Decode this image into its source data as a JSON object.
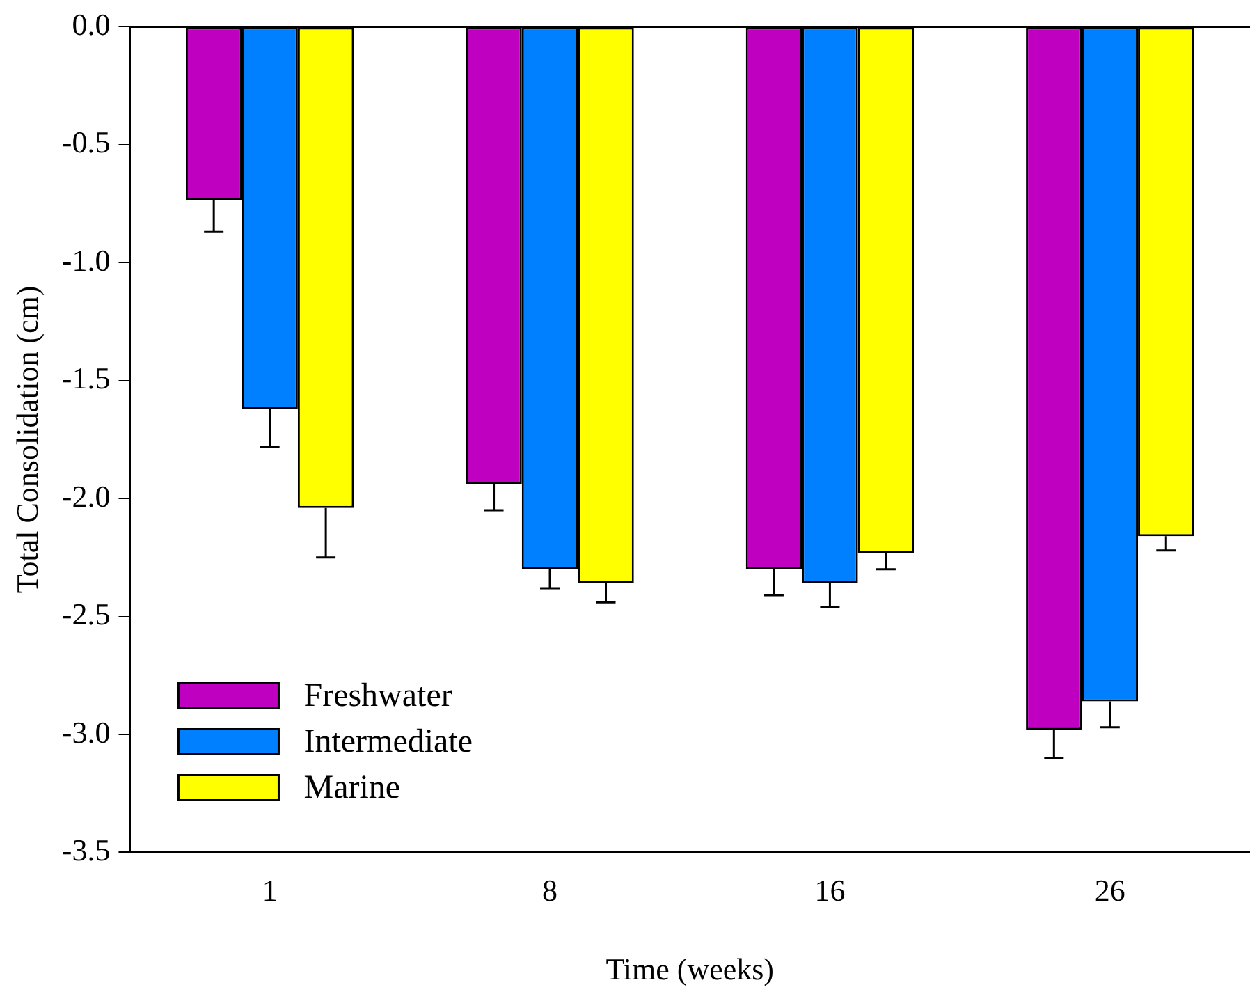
{
  "chart_data": {
    "type": "bar",
    "xlabel": "Time (weeks)",
    "ylabel": "Total Consolidation (cm)",
    "categories": [
      "1",
      "8",
      "16",
      "26"
    ],
    "series": [
      {
        "name": "Freshwater",
        "color": "#c000c0",
        "values": [
          -0.735,
          -1.94,
          -2.3,
          -2.98
        ],
        "errors": [
          [
            -0.87,
            -0.735
          ],
          [
            -2.05,
            -1.94
          ],
          [
            -2.41,
            -2.3
          ],
          [
            -3.1,
            -2.98
          ]
        ]
      },
      {
        "name": "Intermediate",
        "color": "#0080ff",
        "values": [
          -1.62,
          -2.3,
          -2.36,
          -2.86
        ],
        "errors": [
          [
            -1.78,
            -1.62
          ],
          [
            -2.38,
            -2.3
          ],
          [
            -2.46,
            -2.36
          ],
          [
            -2.97,
            -2.86
          ]
        ]
      },
      {
        "name": "Marine",
        "color": "#ffff00",
        "values": [
          -2.04,
          -2.36,
          -2.23,
          -2.16
        ],
        "errors": [
          [
            -2.25,
            -2.04
          ],
          [
            -2.44,
            -2.36
          ],
          [
            -2.3,
            -2.23
          ],
          [
            -2.22,
            -2.16
          ]
        ]
      }
    ],
    "ylim": [
      -3.5,
      0
    ],
    "yticks": [
      {
        "value": 0,
        "label": "0.0"
      },
      -0.5,
      {
        "value": -1,
        "label": "-1.0"
      },
      -1.5,
      {
        "value": -2,
        "label": "-2.0"
      },
      -2.5,
      {
        "value": -3,
        "label": "-3.0"
      },
      -3.5
    ],
    "grid": false,
    "legend": "bottom left"
  }
}
